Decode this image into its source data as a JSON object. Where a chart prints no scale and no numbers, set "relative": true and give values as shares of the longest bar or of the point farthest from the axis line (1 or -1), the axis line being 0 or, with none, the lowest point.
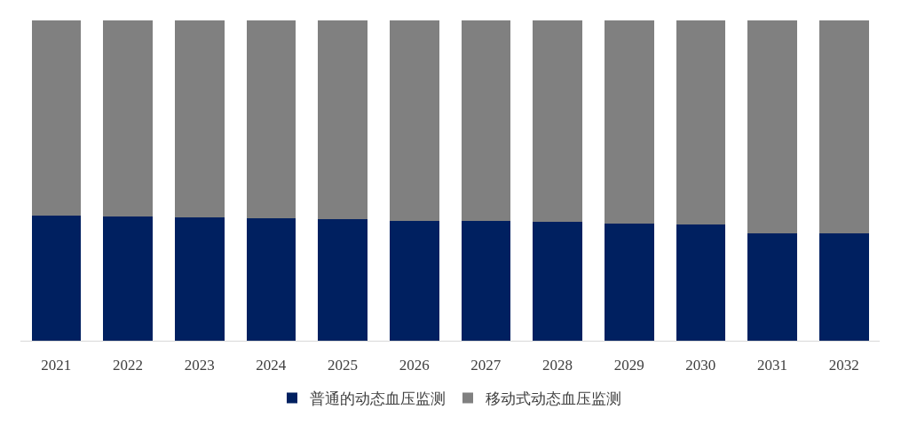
{
  "chart_data": {
    "type": "bar",
    "stacked": true,
    "relative": true,
    "legend": "bottom",
    "categories": [
      "2021",
      "2022",
      "2023",
      "2024",
      "2025",
      "2026",
      "2027",
      "2028",
      "2029",
      "2030",
      "2031",
      "2032"
    ],
    "series": [
      {
        "name": "普通的动态血压监测",
        "color": "#002060",
        "values": [
          0.39,
          0.387,
          0.385,
          0.382,
          0.379,
          0.374,
          0.374,
          0.371,
          0.365,
          0.363,
          0.335,
          0.335
        ]
      },
      {
        "name": "移动式动态血压监测",
        "color": "#808080",
        "values": [
          0.61,
          0.613,
          0.615,
          0.618,
          0.621,
          0.626,
          0.626,
          0.629,
          0.635,
          0.637,
          0.665,
          0.665
        ]
      }
    ]
  }
}
